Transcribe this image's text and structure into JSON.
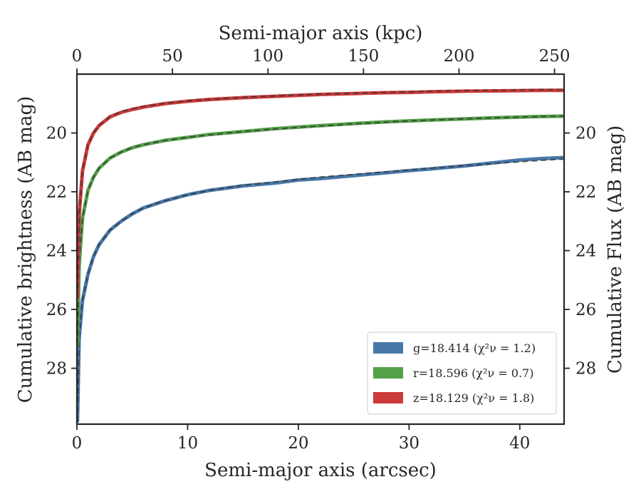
{
  "chart_data": {
    "type": "line",
    "title": "",
    "xlabel": "Semi-major axis (arcsec)",
    "ylabel": "Cumulative brightness (AB mag)",
    "top_xlabel": "Semi-major axis (kpc)",
    "right_ylabel": "Cumulative Flux (AB mag)",
    "xlim": [
      0,
      44
    ],
    "ylim": [
      18,
      29.9
    ],
    "y_inverted": true,
    "top_xlim": [
      0,
      255
    ],
    "x_ticks": [
      0,
      10,
      20,
      30,
      40
    ],
    "y_ticks": [
      20,
      22,
      24,
      26,
      28
    ],
    "top_x_ticks": [
      0,
      50,
      100,
      150,
      200,
      250
    ],
    "grid": false,
    "legend_position": "lower right",
    "series": [
      {
        "name": "g=18.414",
        "chi_label": "(χ²ν = 1.2)",
        "color": "#4878a8",
        "x": [
          0.05,
          0.2,
          0.5,
          1,
          1.5,
          2,
          3,
          4,
          5,
          6,
          8,
          10,
          12,
          15,
          18,
          20,
          22,
          25,
          28,
          30,
          32,
          35,
          38,
          40,
          42,
          43.9
        ],
        "values": [
          29.8,
          27.0,
          25.7,
          24.8,
          24.2,
          23.8,
          23.3,
          23.0,
          22.75,
          22.55,
          22.3,
          22.1,
          21.95,
          21.8,
          21.7,
          21.6,
          21.55,
          21.45,
          21.35,
          21.28,
          21.22,
          21.12,
          21.0,
          20.92,
          20.87,
          20.84
        ],
        "model_values": [
          29.8,
          27.0,
          25.7,
          24.8,
          24.2,
          23.8,
          23.3,
          23.0,
          22.75,
          22.55,
          22.3,
          22.1,
          21.95,
          21.78,
          21.66,
          21.58,
          21.5,
          21.41,
          21.32,
          21.26,
          21.2,
          21.11,
          21.03,
          20.98,
          20.93,
          20.89
        ]
      },
      {
        "name": "r=18.596",
        "chi_label": "(χ²ν = 0.7)",
        "color": "#55a14a",
        "x": [
          0.05,
          0.2,
          0.5,
          1,
          1.5,
          2,
          3,
          4,
          5,
          6,
          8,
          10,
          12,
          15,
          18,
          20,
          22,
          25,
          28,
          30,
          32,
          35,
          38,
          40,
          42,
          43.9
        ],
        "values": [
          27.2,
          24.5,
          22.9,
          21.95,
          21.5,
          21.2,
          20.85,
          20.65,
          20.5,
          20.4,
          20.25,
          20.15,
          20.05,
          19.95,
          19.85,
          19.8,
          19.75,
          19.68,
          19.62,
          19.59,
          19.56,
          19.52,
          19.48,
          19.46,
          19.44,
          19.43
        ],
        "model_values": [
          27.2,
          24.5,
          22.9,
          21.95,
          21.5,
          21.2,
          20.85,
          20.65,
          20.5,
          20.4,
          20.25,
          20.15,
          20.06,
          19.95,
          19.86,
          19.81,
          19.76,
          19.69,
          19.63,
          19.59,
          19.56,
          19.52,
          19.48,
          19.46,
          19.44,
          19.42
        ]
      },
      {
        "name": "z=18.129",
        "chi_label": "(χ²ν = 1.8)",
        "color": "#cc3a3a",
        "x": [
          0.05,
          0.2,
          0.5,
          1,
          1.5,
          2,
          3,
          4,
          5,
          6,
          8,
          10,
          12,
          15,
          18,
          20,
          22,
          25,
          28,
          30,
          32,
          35,
          38,
          40,
          42,
          43.9
        ],
        "values": [
          25.6,
          22.8,
          21.3,
          20.4,
          20.0,
          19.75,
          19.45,
          19.3,
          19.2,
          19.12,
          19.0,
          18.92,
          18.86,
          18.8,
          18.75,
          18.72,
          18.69,
          18.66,
          18.63,
          18.62,
          18.6,
          18.58,
          18.57,
          18.56,
          18.55,
          18.55
        ],
        "model_values": [
          25.6,
          22.8,
          21.3,
          20.4,
          20.0,
          19.73,
          19.44,
          19.28,
          19.18,
          19.1,
          18.99,
          18.91,
          18.86,
          18.79,
          18.74,
          18.71,
          18.68,
          18.65,
          18.62,
          18.6,
          18.58,
          18.56,
          18.55,
          18.54,
          18.53,
          18.52
        ]
      }
    ]
  }
}
